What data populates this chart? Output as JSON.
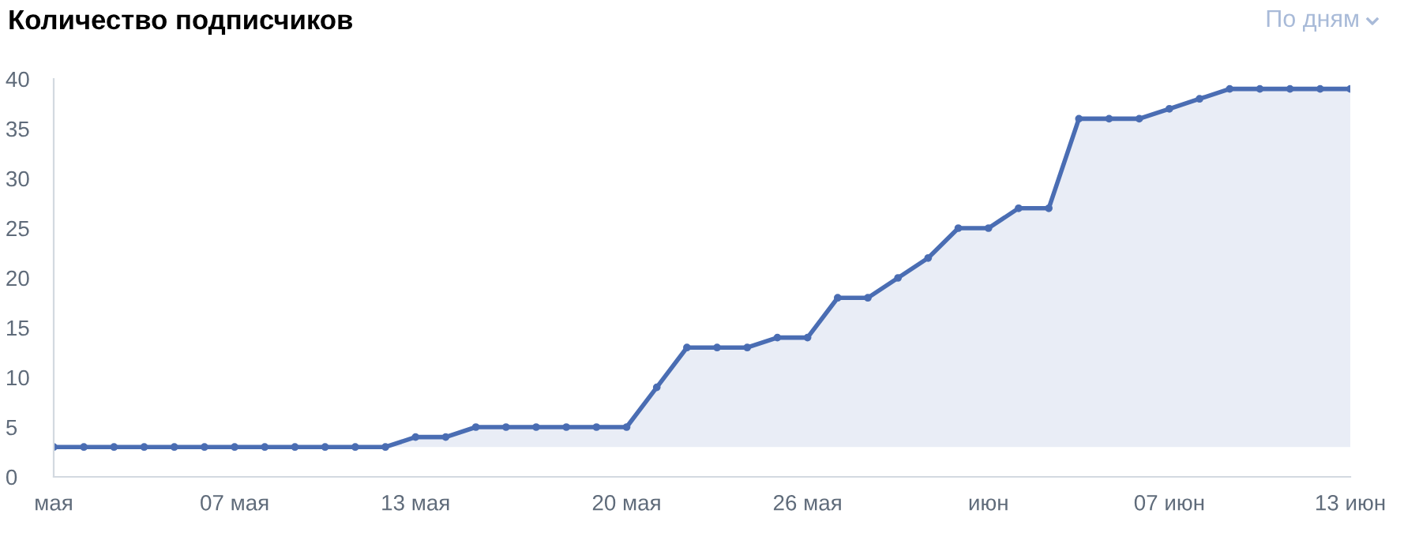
{
  "chart_data": {
    "type": "area",
    "title": "Количество подписчиков",
    "annotations": [
      "По дням"
    ],
    "categories": [
      "мая",
      null,
      null,
      null,
      null,
      null,
      "07 мая",
      null,
      null,
      null,
      null,
      null,
      "13 мая",
      null,
      null,
      null,
      null,
      null,
      null,
      "20 мая",
      null,
      null,
      null,
      null,
      null,
      "26 мая",
      null,
      null,
      null,
      null,
      null,
      "июн",
      null,
      null,
      null,
      null,
      null,
      "07 июн",
      null,
      null,
      null,
      null,
      null,
      "13 июн"
    ],
    "series": [
      {
        "color": "#4a6db3",
        "values": [
          3,
          3,
          3,
          3,
          3,
          3,
          3,
          3,
          3,
          3,
          3,
          3,
          4,
          4,
          5,
          5,
          5,
          5,
          5,
          5,
          9,
          13,
          13,
          13,
          14,
          14,
          18,
          18,
          20,
          22,
          25,
          25,
          27,
          27,
          36,
          36,
          36,
          37,
          38,
          39,
          39,
          39,
          39,
          39
        ]
      }
    ],
    "ylim": [
      0,
      40
    ],
    "yticks": [
      0,
      5,
      10,
      15,
      20,
      25,
      30,
      35,
      40
    ],
    "marker": "circle",
    "line_style": "solid",
    "grid": false,
    "legend": false
  }
}
